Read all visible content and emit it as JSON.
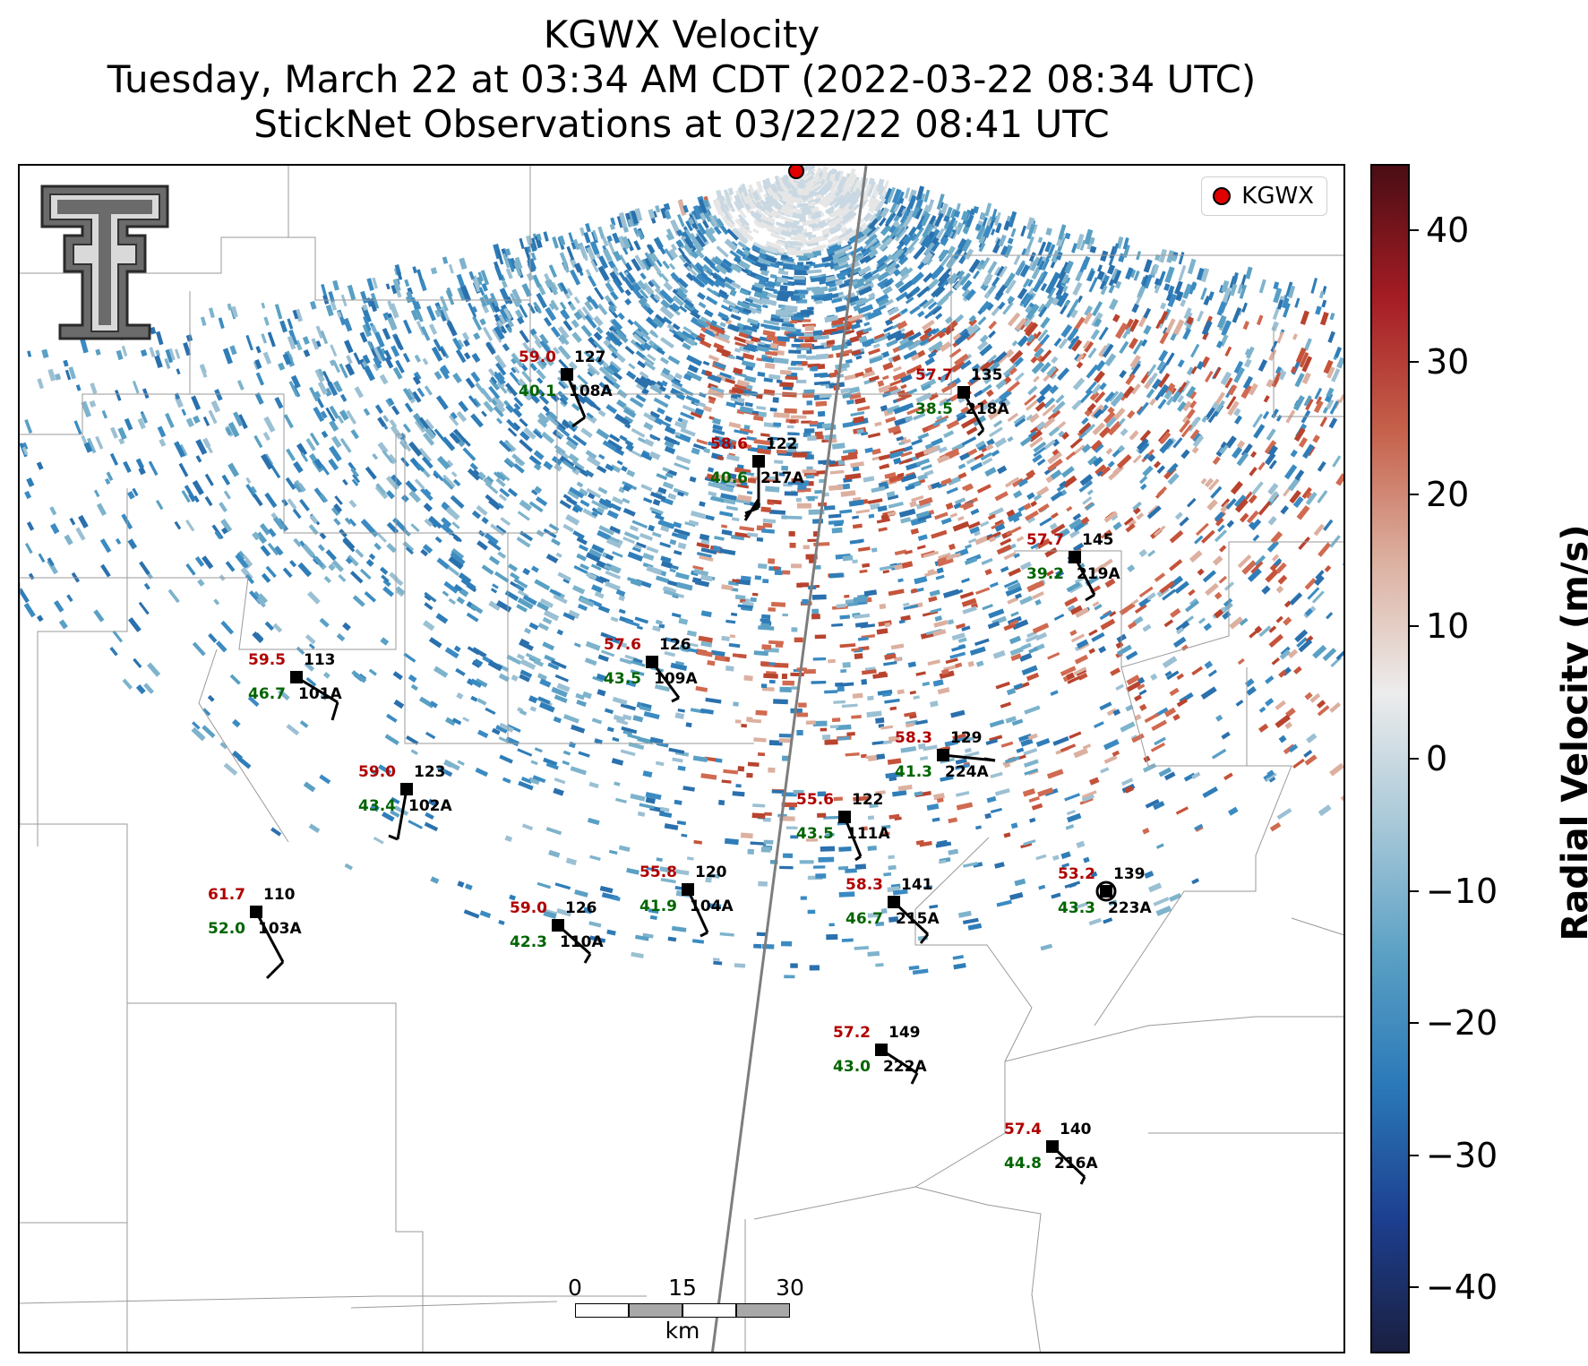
{
  "titles": {
    "line1": "KGWX Velocity",
    "line2": "Tuesday, March 22 at 03:34 AM CDT (2022-03-22 08:34 UTC)",
    "line3": "StickNet Observations at 03/22/22 08:41 UTC"
  },
  "legend": {
    "label": "KGWX",
    "marker_color": "#e00000"
  },
  "scalebar": {
    "ticks": [
      "0",
      "15",
      "30"
    ],
    "unit": "km"
  },
  "colorbar": {
    "title": "Radial Velocity (m/s)",
    "min": -45,
    "max": 45,
    "ticks": [
      "40",
      "30",
      "20",
      "10",
      "0",
      "−10",
      "−20",
      "−30",
      "−40"
    ],
    "colors": [
      "#1a1f40",
      "#1d3f8f",
      "#2a78b8",
      "#5aa0c4",
      "#a8c8d8",
      "#ececec",
      "#dcb0a0",
      "#c5604a",
      "#a51c24",
      "#4a0d14"
    ]
  },
  "station_colors": {
    "temperature": "#b00000",
    "dewpoint": "#006400",
    "label": "#000000"
  },
  "stations": [
    {
      "id": "108A",
      "temp": "59.0",
      "dew": "40.1",
      "dir": "127"
    },
    {
      "id": "217A",
      "temp": "58.6",
      "dew": "40.6",
      "dir": "122"
    },
    {
      "id": "218A",
      "temp": "57.7",
      "dew": "38.5",
      "dir": "135"
    },
    {
      "id": "219A",
      "temp": "57.7",
      "dew": "39.2",
      "dir": "145"
    },
    {
      "id": "109A",
      "temp": "57.6",
      "dew": "43.5",
      "dir": "126"
    },
    {
      "id": "101A",
      "temp": "59.5",
      "dew": "46.7",
      "dir": "113"
    },
    {
      "id": "224A",
      "temp": "58.3",
      "dew": "41.3",
      "dir": "129"
    },
    {
      "id": "102A",
      "temp": "59.0",
      "dew": "43.4",
      "dir": "123"
    },
    {
      "id": "111A",
      "temp": "55.6",
      "dew": "43.5",
      "dir": "122"
    },
    {
      "id": "223A",
      "temp": "53.2",
      "dew": "43.3",
      "dir": "139"
    },
    {
      "id": "103A",
      "temp": "61.7",
      "dew": "52.0",
      "dir": "110"
    },
    {
      "id": "104A",
      "temp": "55.8",
      "dew": "41.9",
      "dir": "120"
    },
    {
      "id": "215A",
      "temp": "58.3",
      "dew": "46.7",
      "dir": "141"
    },
    {
      "id": "110A",
      "temp": "59.0",
      "dew": "42.3",
      "dir": "126"
    },
    {
      "id": "222A",
      "temp": "57.2",
      "dew": "43.0",
      "dir": "149"
    },
    {
      "id": "216A",
      "temp": "57.4",
      "dew": "44.8",
      "dir": "140"
    }
  ]
}
